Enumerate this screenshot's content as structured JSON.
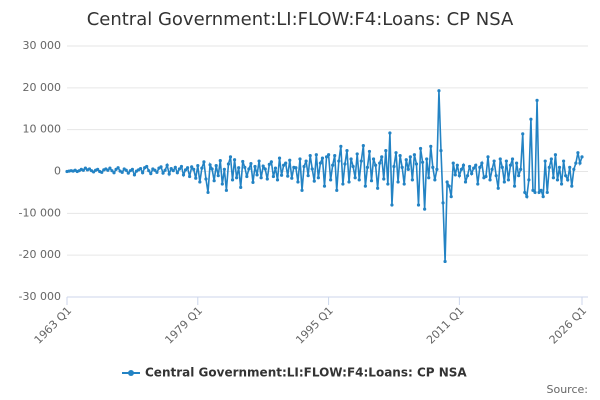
{
  "chart_data": {
    "type": "line",
    "title": "Central Government:LI:FLOW:F4:Loans: CP NSA",
    "source_label": "Source:",
    "categories": [
      "1963 Q1",
      null,
      null,
      null,
      null,
      null,
      null,
      null,
      null,
      null,
      null,
      null,
      null,
      null,
      null,
      null,
      null,
      null,
      null,
      null,
      null,
      null,
      null,
      null,
      null,
      null,
      null,
      null,
      null,
      null,
      null,
      null,
      null,
      null,
      null,
      null,
      null,
      null,
      null,
      null,
      null,
      null,
      null,
      null,
      null,
      null,
      null,
      null,
      null,
      null,
      null,
      null,
      null,
      null,
      null,
      null,
      null,
      null,
      null,
      null,
      null,
      null,
      null,
      null,
      "1979 Q1",
      null,
      null,
      null,
      null,
      null,
      null,
      null,
      null,
      null,
      null,
      null,
      null,
      null,
      null,
      null,
      null,
      null,
      null,
      null,
      null,
      null,
      null,
      null,
      null,
      null,
      null,
      null,
      null,
      null,
      null,
      null,
      null,
      null,
      null,
      null,
      null,
      null,
      null,
      null,
      null,
      null,
      null,
      null,
      null,
      null,
      null,
      null,
      null,
      null,
      null,
      null,
      null,
      null,
      null,
      null,
      null,
      null,
      null,
      null,
      null,
      null,
      null,
      null,
      "1995 Q1",
      null,
      null,
      null,
      null,
      null,
      null,
      null,
      null,
      null,
      null,
      null,
      null,
      null,
      null,
      null,
      null,
      null,
      null,
      null,
      null,
      null,
      null,
      null,
      null,
      null,
      null,
      null,
      null,
      null,
      null,
      null,
      null,
      null,
      null,
      null,
      null,
      null,
      null,
      null,
      null,
      null,
      null,
      null,
      null,
      null,
      null,
      null,
      null,
      null,
      null,
      null,
      null,
      null,
      null,
      null,
      null,
      null,
      null,
      null,
      null,
      null,
      null,
      null,
      "2011 Q1",
      null,
      null,
      null,
      null,
      null,
      null,
      null,
      null,
      null,
      null,
      null,
      null,
      null,
      null,
      null,
      null,
      null,
      null,
      null,
      null,
      null,
      null,
      null,
      null,
      null,
      null,
      null,
      null,
      null,
      null,
      null,
      null,
      null,
      null,
      null,
      null,
      null,
      null,
      null,
      null,
      null,
      null,
      null,
      null,
      null,
      null,
      null,
      null,
      null,
      null,
      null,
      null,
      null,
      null,
      null,
      null,
      null,
      null,
      null,
      "2026 Q1"
    ],
    "series": [
      {
        "name": "Central Government:LI:FLOW:F4:Loans: CP NSA",
        "color": "#2383c4",
        "values": [
          0,
          100,
          200,
          100,
          300,
          0,
          200,
          500,
          300,
          800,
          400,
          600,
          200,
          -100,
          300,
          500,
          0,
          -200,
          400,
          600,
          300,
          800,
          200,
          -300,
          500,
          900,
          100,
          -200,
          600,
          300,
          -400,
          200,
          500,
          -800,
          100,
          400,
          700,
          -300,
          900,
          1200,
          200,
          -500,
          600,
          300,
          -200,
          800,
          1100,
          -400,
          300,
          1500,
          -600,
          700,
          200,
          1000,
          -300,
          600,
          1200,
          -800,
          400,
          900,
          -1200,
          1100,
          500,
          -1600,
          1400,
          -2500,
          800,
          2300,
          -1800,
          -5000,
          1600,
          600,
          -2200,
          1400,
          -1000,
          2600,
          -3000,
          500,
          -4500,
          1800,
          3500,
          -2000,
          2800,
          -1500,
          900,
          -3800,
          2400,
          1000,
          -1200,
          600,
          1900,
          -2600,
          1200,
          -800,
          2500,
          -1500,
          1300,
          600,
          -1800,
          1700,
          2300,
          -1200,
          800,
          -2000,
          3200,
          -900,
          1500,
          2000,
          -1100,
          2700,
          -1600,
          1000,
          900,
          -2500,
          3000,
          -4500,
          1200,
          2500,
          -1000,
          3800,
          600,
          -2300,
          4000,
          -1500,
          2000,
          3200,
          -3500,
          3500,
          4000,
          -2000,
          1500,
          3800,
          -4500,
          2500,
          6000,
          -3000,
          1800,
          5000,
          -2500,
          3000,
          1200,
          -1500,
          4200,
          -2000,
          2500,
          6200,
          -3500,
          1000,
          4800,
          -2200,
          3000,
          1500,
          -4000,
          2000,
          3500,
          -1800,
          5000,
          -3000,
          9200,
          -8000,
          1200,
          4500,
          -2500,
          3800,
          1000,
          -3000,
          2800,
          500,
          3500,
          -2000,
          4000,
          1800,
          -8000,
          5500,
          2200,
          -9000,
          3000,
          -1500,
          6000,
          1000,
          -2000,
          500,
          19300,
          5000,
          -7500,
          -21500,
          -2500,
          -3500,
          -6000,
          2000,
          -800,
          1500,
          -1000,
          500,
          1500,
          -2500,
          -1000,
          1200,
          -500,
          800,
          1500,
          -3000,
          1000,
          2000,
          -1500,
          -1200,
          3500,
          -2000,
          500,
          2500,
          -1000,
          -4000,
          3000,
          1000,
          -2500,
          2500,
          -2000,
          1500,
          3000,
          -3500,
          2000,
          -1000,
          500,
          9000,
          -5000,
          -6000,
          -2000,
          12500,
          -4500,
          -5000,
          17000,
          -5000,
          -4500,
          -6000,
          2500,
          -5000,
          1000,
          3000,
          -1500,
          4000,
          -2000,
          1000,
          -3000,
          2500,
          -1000,
          -2000,
          1000,
          -3500,
          500,
          2000,
          4500,
          2000,
          3500
        ]
      }
    ],
    "ylim": [
      -30000,
      30000
    ],
    "yticks": [
      {
        "value": -30000,
        "label": "-30 000"
      },
      {
        "value": -20000,
        "label": "-20 000"
      },
      {
        "value": -10000,
        "label": "-10 000"
      },
      0,
      {
        "value": 10000,
        "label": "10 000"
      },
      {
        "value": 20000,
        "label": "20 000"
      },
      {
        "value": 30000,
        "label": "30 000"
      }
    ],
    "grid": true
  }
}
